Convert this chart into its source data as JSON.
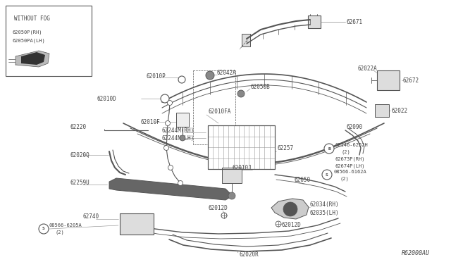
{
  "bg_color": "#ffffff",
  "lc": "#555555",
  "tc": "#444444",
  "title_ref": "R62000AU",
  "inset_title": "WITHOUT FOG",
  "inset_label1": "62050P(RH)",
  "inset_label2": "62050PA(LH)",
  "fs": 5.5
}
